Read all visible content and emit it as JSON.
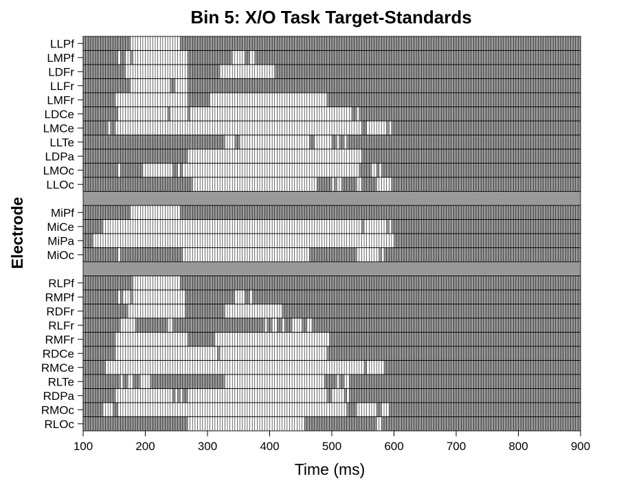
{
  "chart_data": {
    "type": "heatmap",
    "title": "Bin 5: X/O Task Target-Standards",
    "xlabel": "Time (ms)",
    "ylabel": "Electrode",
    "xlim": [
      100,
      900
    ],
    "x_ticks": [
      100,
      200,
      300,
      400,
      500,
      600,
      700,
      800,
      900
    ],
    "bin_width_ms": 4,
    "colors": {
      "significant": "#ffffff",
      "not_significant": "#999999",
      "grid": "#000000"
    },
    "groups": [
      {
        "rows": [
          {
            "label": "LLPf",
            "significant": [
              [
                176,
                256
              ]
            ]
          },
          {
            "label": "LMPf",
            "significant": [
              [
                156,
                160
              ],
              [
                168,
                176
              ],
              [
                180,
                268
              ],
              [
                340,
                360
              ],
              [
                368,
                376
              ]
            ]
          },
          {
            "label": "LDFr",
            "significant": [
              [
                168,
                268
              ],
              [
                320,
                408
              ]
            ]
          },
          {
            "label": "LLFr",
            "significant": [
              [
                176,
                240
              ],
              [
                248,
                268
              ]
            ]
          },
          {
            "label": "LMFr",
            "significant": [
              [
                152,
                268
              ],
              [
                304,
                492
              ]
            ]
          },
          {
            "label": "LDCe",
            "significant": [
              [
                156,
                236
              ],
              [
                240,
                268
              ],
              [
                272,
                532
              ],
              [
                540,
                544
              ]
            ]
          },
          {
            "label": "LMCe",
            "significant": [
              [
                140,
                144
              ],
              [
                152,
                548
              ],
              [
                556,
                588
              ],
              [
                592,
                596
              ]
            ]
          },
          {
            "label": "LLTe",
            "significant": [
              [
                328,
                344
              ],
              [
                352,
                464
              ],
              [
                472,
                500
              ],
              [
                508,
                512
              ],
              [
                520,
                524
              ]
            ]
          },
          {
            "label": "LDPa",
            "significant": [
              [
                268,
                548
              ]
            ]
          },
          {
            "label": "LMOc",
            "significant": [
              [
                156,
                160
              ],
              [
                196,
                244
              ],
              [
                252,
                256
              ],
              [
                260,
                544
              ],
              [
                564,
                572
              ],
              [
                576,
                580
              ]
            ]
          },
          {
            "label": "LLOc",
            "significant": [
              [
                276,
                476
              ],
              [
                500,
                504
              ],
              [
                508,
                516
              ],
              [
                540,
                548
              ],
              [
                572,
                596
              ]
            ]
          }
        ]
      },
      {
        "rows": [
          {
            "label": "MiPf",
            "significant": [
              [
                176,
                256
              ]
            ]
          },
          {
            "label": "MiCe",
            "significant": [
              [
                132,
                548
              ],
              [
                552,
                588
              ],
              [
                592,
                596
              ]
            ]
          },
          {
            "label": "MiPa",
            "significant": [
              [
                116,
                600
              ]
            ]
          },
          {
            "label": "MiOc",
            "significant": [
              [
                156,
                160
              ],
              [
                260,
                464
              ],
              [
                540,
                576
              ],
              [
                580,
                584
              ]
            ]
          }
        ]
      },
      {
        "rows": [
          {
            "label": "RLPf",
            "significant": [
              [
                180,
                256
              ]
            ]
          },
          {
            "label": "RMPf",
            "significant": [
              [
                156,
                160
              ],
              [
                164,
                176
              ],
              [
                180,
                264
              ],
              [
                344,
                360
              ],
              [
                368,
                372
              ]
            ]
          },
          {
            "label": "RDFr",
            "significant": [
              [
                172,
                264
              ],
              [
                328,
                420
              ]
            ]
          },
          {
            "label": "RLFr",
            "significant": [
              [
                160,
                184
              ],
              [
                236,
                244
              ],
              [
                392,
                396
              ],
              [
                404,
                412
              ],
              [
                420,
                424
              ],
              [
                436,
                452
              ],
              [
                460,
                468
              ]
            ]
          },
          {
            "label": "RMFr",
            "significant": [
              [
                152,
                268
              ],
              [
                312,
                496
              ]
            ]
          },
          {
            "label": "RDCe",
            "significant": [
              [
                152,
                256
              ],
              [
                256,
                316
              ],
              [
                320,
                492
              ]
            ]
          },
          {
            "label": "RMCe",
            "significant": [
              [
                136,
                552
              ],
              [
                556,
                584
              ]
            ]
          },
          {
            "label": "RLTe",
            "significant": [
              [
                160,
                164
              ],
              [
                172,
                180
              ],
              [
                192,
                208
              ],
              [
                328,
                488
              ],
              [
                508,
                512
              ],
              [
                520,
                528
              ]
            ]
          },
          {
            "label": "RDPa",
            "significant": [
              [
                152,
                244
              ],
              [
                248,
                252
              ],
              [
                256,
                260
              ],
              [
                268,
                492
              ],
              [
                500,
                520
              ],
              [
                524,
                528
              ]
            ]
          },
          {
            "label": "RMOc",
            "significant": [
              [
                132,
                148
              ],
              [
                156,
                524
              ],
              [
                540,
                572
              ],
              [
                580,
                592
              ]
            ]
          },
          {
            "label": "RLOc",
            "significant": [
              [
                268,
                456
              ],
              [
                572,
                580
              ]
            ]
          }
        ]
      }
    ]
  }
}
